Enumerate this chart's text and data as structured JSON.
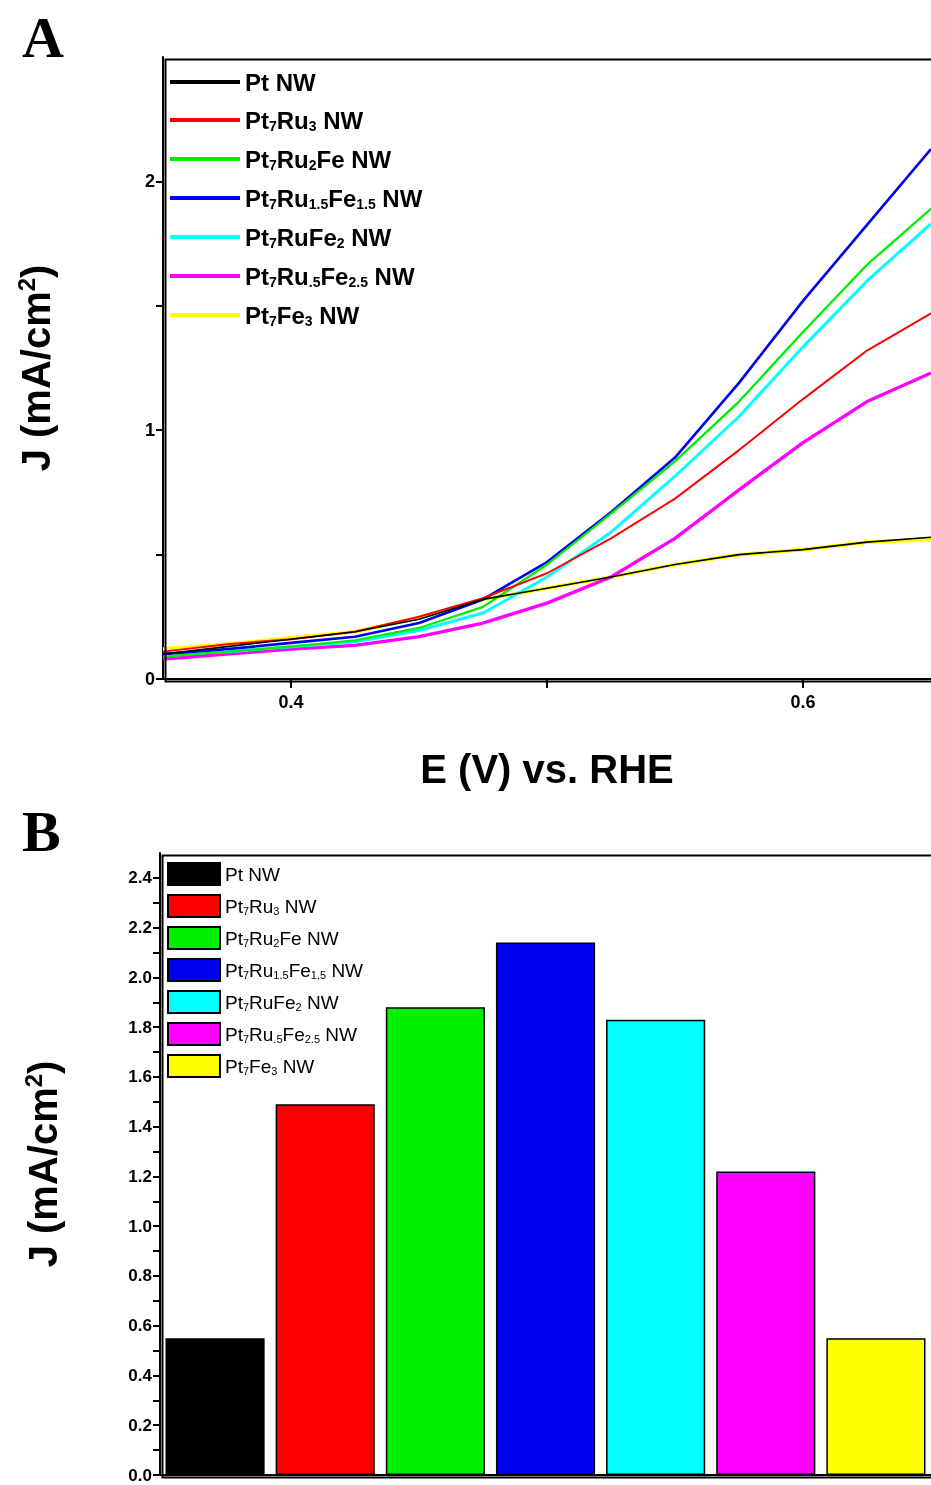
{
  "chart_data": [
    {
      "type": "line",
      "annotations": [
        "A"
      ],
      "xlabel": "E (V) vs. RHE",
      "ylabel": "J (mA/cm$^{2}$)",
      "x": [
        0.35,
        0.375,
        0.4,
        0.425,
        0.45,
        0.475,
        0.5,
        0.525,
        0.55,
        0.575,
        0.6,
        0.625,
        0.65
      ],
      "series": [
        {
          "name": "Pt NW",
          "color": "#000000",
          "values": [
            0.1,
            0.13,
            0.16,
            0.19,
            0.24,
            0.32,
            0.365,
            0.41,
            0.46,
            0.5,
            0.52,
            0.55,
            0.57
          ]
        },
        {
          "name": "Pt$_{7}$Ru$_{3}$ NW",
          "color": "#ff0000",
          "values": [
            0.11,
            0.14,
            0.16,
            0.19,
            0.25,
            0.325,
            0.425,
            0.565,
            0.725,
            0.92,
            1.125,
            1.32,
            1.47
          ]
        },
        {
          "name": "Pt$_{7}$Ru$_{2}$Fe NW",
          "color": "#00ee00",
          "values": [
            0.09,
            0.11,
            0.13,
            0.155,
            0.205,
            0.29,
            0.46,
            0.665,
            0.875,
            1.115,
            1.395,
            1.665,
            1.89
          ]
        },
        {
          "name": "Pt$_{7}$Ru$_{1.5}$Fe$_{1.5}$ NW",
          "color": "#0000ee",
          "values": [
            0.1,
            0.12,
            0.145,
            0.17,
            0.225,
            0.32,
            0.47,
            0.67,
            0.89,
            1.19,
            1.52,
            1.825,
            2.13
          ]
        },
        {
          "name": "Pt$_{7}$RuFe$_{2}$ NW",
          "color": "#00ffff",
          "values": [
            0.1,
            0.11,
            0.13,
            0.15,
            0.195,
            0.265,
            0.41,
            0.59,
            0.815,
            1.055,
            1.335,
            1.6,
            1.83
          ]
        },
        {
          "name": "Pt$_{7}$Ru$_{.5}$Fe$_{2.5}$ NW",
          "color": "#ff00ff",
          "values": [
            0.08,
            0.1,
            0.12,
            0.135,
            0.17,
            0.225,
            0.305,
            0.41,
            0.565,
            0.76,
            0.95,
            1.115,
            1.23
          ]
        },
        {
          "name": "Pt$_{7}$Fe$_{3}$ NW",
          "color": "#ffff00",
          "values": [
            0.12,
            0.14,
            0.165,
            0.19,
            0.245,
            0.32,
            0.365,
            0.41,
            0.46,
            0.5,
            0.52,
            0.55,
            0.56
          ]
        }
      ],
      "xlim": [
        0.35,
        0.65
      ],
      "xticks": [
        0.4,
        {
          "value": 0.5,
          "label": null
        },
        0.6
      ],
      "ylim": [
        0,
        2.5
      ],
      "yticks": [
        0,
        {
          "value": 0.5,
          "label": null
        },
        1,
        {
          "value": 1.5,
          "label": null
        },
        2
      ],
      "legend": "top left"
    },
    {
      "type": "bar",
      "annotations": [
        "B"
      ],
      "ylabel": "J (mA/cm$^{2}$)",
      "categories": [
        null,
        null,
        null,
        null,
        null,
        null,
        null
      ],
      "series": [
        {
          "name": "Pt NW",
          "color": "#000000",
          "values": [
            0.55,
            null,
            null,
            null,
            null,
            null,
            null
          ]
        },
        {
          "name": "Pt$_{7}$Ru$_{3}$ NW",
          "color": "#ff0000",
          "values": [
            null,
            1.49,
            null,
            null,
            null,
            null,
            null
          ]
        },
        {
          "name": "Pt$_{7}$Ru$_{2}$Fe NW",
          "color": "#00ee00",
          "values": [
            null,
            null,
            1.88,
            null,
            null,
            null,
            null
          ]
        },
        {
          "name": "Pt$_{7}$Ru$_{1.5}$Fe$_{1.5}$ NW",
          "color": "#0000ee",
          "values": [
            null,
            null,
            null,
            2.14,
            null,
            null,
            null
          ]
        },
        {
          "name": "Pt$_{7}$RuFe$_{2}$ NW",
          "color": "#00ffff",
          "values": [
            null,
            null,
            null,
            null,
            1.83,
            null,
            null
          ]
        },
        {
          "name": "Pt$_{7}$Ru$_{.5}$Fe$_{2.5}$ NW",
          "color": "#ff00ff",
          "values": [
            null,
            null,
            null,
            null,
            null,
            1.22,
            null
          ]
        },
        {
          "name": "Pt$_{7}$Fe$_{3}$ NW",
          "color": "#ffff00",
          "values": [
            null,
            null,
            null,
            null,
            null,
            null,
            0.55
          ]
        }
      ],
      "ylim": [
        0,
        2.5
      ],
      "yticks": [
        {
          "value": 0,
          "label": "0.0"
        },
        {
          "value": 0.1,
          "label": null
        },
        0.2,
        {
          "value": 0.3,
          "label": null
        },
        0.4,
        {
          "value": 0.5,
          "label": null
        },
        0.6,
        {
          "value": 0.7,
          "label": null
        },
        0.8,
        {
          "value": 0.9,
          "label": null
        },
        {
          "value": 1,
          "label": "1.0"
        },
        {
          "value": 1.1,
          "label": null
        },
        1.2,
        {
          "value": 1.3,
          "label": null
        },
        1.4,
        {
          "value": 1.5,
          "label": null
        },
        1.6,
        {
          "value": 1.7,
          "label": null
        },
        1.8,
        {
          "value": 1.9,
          "label": null
        },
        {
          "value": 2,
          "label": "2.0"
        },
        {
          "value": 2.1,
          "label": null
        },
        2.2,
        {
          "value": 2.3,
          "label": null
        },
        2.4
      ],
      "legend": "top left",
      "tick_labels": "y"
    }
  ]
}
